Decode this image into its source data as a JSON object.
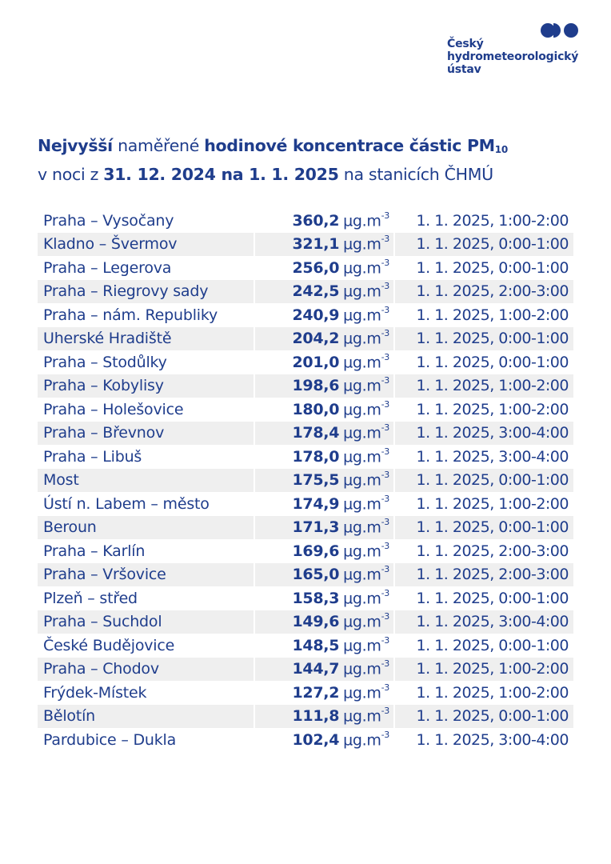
{
  "logo": {
    "marks": [
      "circle",
      "half-circle",
      "circle"
    ],
    "lines": [
      "Český",
      "hydrometeorologický",
      "ústav"
    ],
    "color": "#1f3d8c"
  },
  "title": {
    "line1": {
      "part1_bold": "Nejvyšší",
      "part2": " naměřené ",
      "part3_bold": "hodinové koncentrace částic PM",
      "subscript": "10"
    },
    "line2": {
      "part1": "v noci z ",
      "part2_bold": "31. 12. 2024 na 1. 1. 2025",
      "part3": " na stanicích ČHMÚ"
    }
  },
  "unit": {
    "base": "µg.m",
    "exponent": "-3"
  },
  "colors": {
    "text": "#1f3d8c",
    "stripe": "#efefef",
    "background": "#ffffff"
  },
  "rows": [
    {
      "station": "Praha – Vysočany",
      "value": "360,2",
      "time": "1. 1. 2025, 1:00-2:00"
    },
    {
      "station": "Kladno – Švermov",
      "value": "321,1",
      "time": "1. 1. 2025, 0:00-1:00"
    },
    {
      "station": "Praha – Legerova",
      "value": "256,0",
      "time": "1. 1. 2025, 0:00-1:00"
    },
    {
      "station": "Praha – Riegrovy sady",
      "value": "242,5",
      "time": "1. 1. 2025, 2:00-3:00"
    },
    {
      "station": "Praha – nám. Republiky",
      "value": "240,9",
      "time": "1. 1. 2025, 1:00-2:00"
    },
    {
      "station": "Uherské Hradiště",
      "value": "204,2",
      "time": "1. 1. 2025, 0:00-1:00"
    },
    {
      "station": "Praha – Stodůlky",
      "value": "201,0",
      "time": "1. 1. 2025, 0:00-1:00"
    },
    {
      "station": "Praha – Kobylisy",
      "value": "198,6",
      "time": "1. 1. 2025, 1:00-2:00"
    },
    {
      "station": "Praha – Holešovice",
      "value": "180,0",
      "time": "1. 1. 2025, 1:00-2:00"
    },
    {
      "station": "Praha – Břevnov",
      "value": "178,4",
      "time": "1. 1. 2025, 3:00-4:00"
    },
    {
      "station": "Praha – Libuš",
      "value": "178,0",
      "time": "1. 1. 2025, 3:00-4:00"
    },
    {
      "station": "Most",
      "value": "175,5",
      "time": "1. 1. 2025, 0:00-1:00"
    },
    {
      "station": "Ústí n. Labem – město",
      "value": "174,9",
      "time": "1. 1. 2025, 1:00-2:00"
    },
    {
      "station": "Beroun",
      "value": "171,3",
      "time": "1. 1. 2025, 0:00-1:00"
    },
    {
      "station": "Praha – Karlín",
      "value": "169,6",
      "time": "1. 1. 2025, 2:00-3:00"
    },
    {
      "station": "Praha – Vršovice",
      "value": "165,0",
      "time": "1. 1. 2025, 2:00-3:00"
    },
    {
      "station": "Plzeň – střed",
      "value": "158,3",
      "time": "1. 1. 2025, 0:00-1:00"
    },
    {
      "station": "Praha – Suchdol",
      "value": "149,6",
      "time": "1. 1. 2025, 3:00-4:00"
    },
    {
      "station": "České Budějovice",
      "value": "148,5",
      "time": "1. 1. 2025, 0:00-1:00"
    },
    {
      "station": "Praha – Chodov",
      "value": "144,7",
      "time": "1. 1. 2025, 1:00-2:00"
    },
    {
      "station": "Frýdek-Místek",
      "value": "127,2",
      "time": "1. 1. 2025, 1:00-2:00"
    },
    {
      "station": "Bělotín",
      "value": "111,8",
      "time": "1. 1. 2025, 0:00-1:00"
    },
    {
      "station": "Pardubice – Dukla",
      "value": "102,4",
      "time": "1. 1. 2025, 3:00-4:00"
    }
  ]
}
